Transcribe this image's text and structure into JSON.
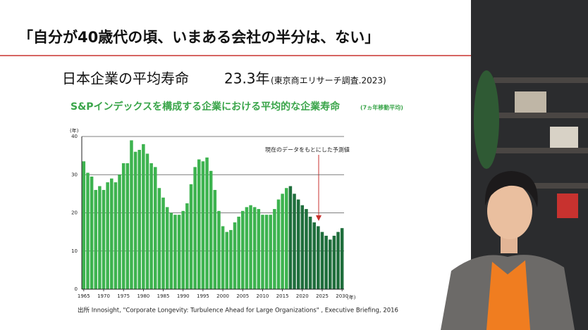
{
  "slide": {
    "title": "「自分が40歳代の頃、いまある会社の半分は、ない」",
    "subtitle": "日本企業の平均寿命",
    "subtitle_value": "23.3年",
    "subtitle_source": "(東京商エリサーチ調査.2023)",
    "source": "出所 Innosight, \"Corporate Longevity: Turbulence Ahead for Large Organizations\" , Executive Briefing, 2016"
  },
  "chart_data": {
    "type": "bar",
    "title": "S&Pインデックスを構成する企業における平均的な企業寿命",
    "subtitle": "(7ヵ年移動平均)",
    "x_label": "(年)",
    "y_label": "(年)",
    "annotation": "現在のデータをもとにした予測値",
    "x": [
      1965,
      1966,
      1967,
      1968,
      1969,
      1970,
      1971,
      1972,
      1973,
      1974,
      1975,
      1976,
      1977,
      1978,
      1979,
      1980,
      1981,
      1982,
      1983,
      1984,
      1985,
      1986,
      1987,
      1988,
      1989,
      1990,
      1991,
      1992,
      1993,
      1994,
      1995,
      1996,
      1997,
      1998,
      1999,
      2000,
      2001,
      2002,
      2003,
      2004,
      2005,
      2006,
      2007,
      2008,
      2009,
      2010,
      2011,
      2012,
      2013,
      2014,
      2015,
      2016,
      2017,
      2018,
      2019,
      2020,
      2021,
      2022,
      2023,
      2024,
      2025,
      2026,
      2027,
      2028,
      2029,
      2030
    ],
    "values": [
      33.5,
      30.5,
      29.5,
      26,
      27,
      26,
      28,
      29,
      28,
      30,
      33,
      33,
      39,
      36,
      36.5,
      38,
      35.5,
      33,
      32,
      26.5,
      24,
      21.5,
      20,
      19.5,
      19.5,
      20.5,
      22.5,
      27.5,
      32,
      34,
      33.5,
      34.5,
      31,
      26,
      20.5,
      16.5,
      15,
      15.5,
      17.5,
      19,
      20.5,
      21.5,
      22,
      21.5,
      21,
      19.5,
      19.5,
      19.5,
      21,
      23.5,
      25,
      26.5,
      27,
      25,
      23.5,
      22,
      21,
      19,
      17.5,
      16.5,
      15,
      14,
      13,
      14,
      15,
      16
    ],
    "color": "#3db34f",
    "forecast_color": "#1f6e3c",
    "forecast_start": 2017,
    "xlim": [
      1964.5,
      2030.5
    ],
    "xticks": [
      1965,
      1970,
      1975,
      1980,
      1985,
      1990,
      1995,
      2000,
      2005,
      2010,
      2015,
      2020,
      2025,
      2030
    ],
    "ylim": [
      0,
      40
    ],
    "yticks": [
      0,
      10,
      20,
      30,
      40
    ],
    "grid": true
  }
}
